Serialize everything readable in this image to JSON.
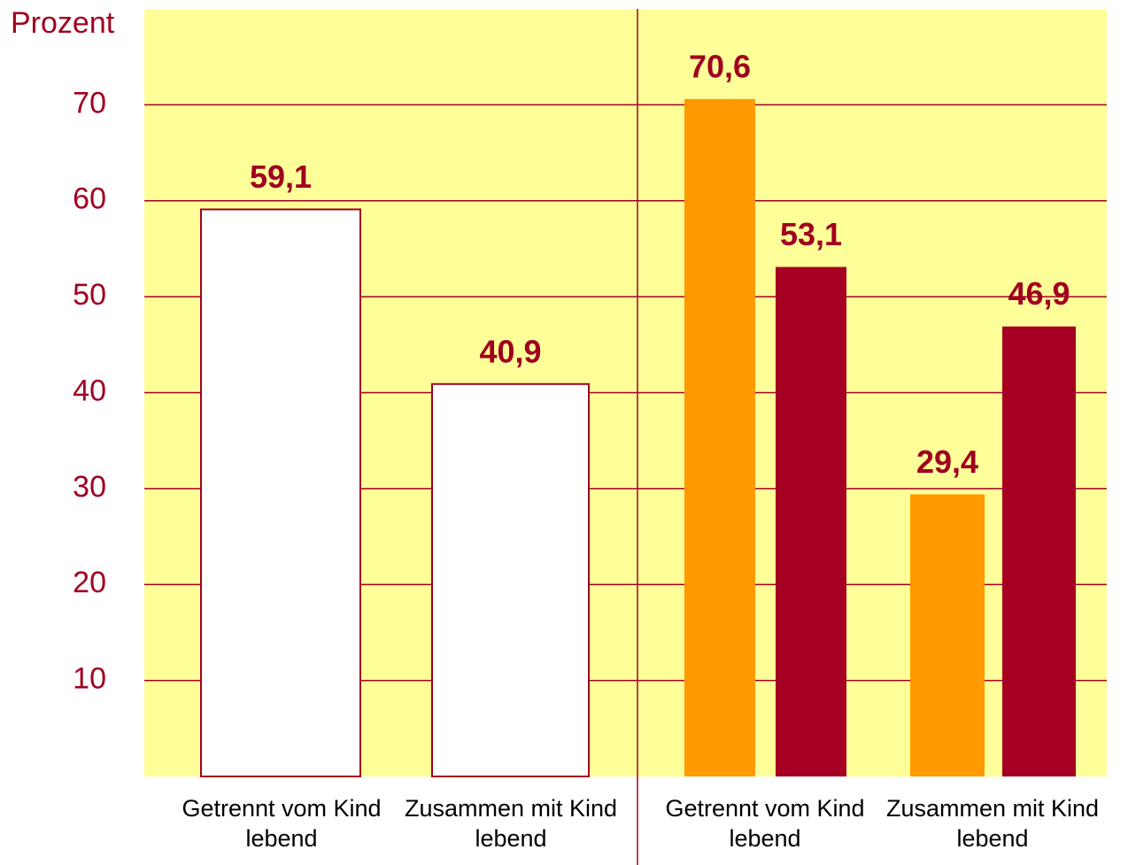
{
  "chart_data": {
    "type": "bar",
    "ylabel": "Prozent",
    "categories": [
      "Getrennt vom Kind lebend",
      "Zusammen mit Kind lebend",
      "Getrennt vom Kind lebend",
      "Zusammen mit Kind lebend"
    ],
    "series": [
      {
        "color": "#ffffff",
        "values": [
          59.1,
          40.9,
          null,
          null
        ],
        "value_labels": [
          "59,1",
          "40,9",
          null,
          null
        ]
      },
      {
        "color": "#ff9900",
        "values": [
          null,
          null,
          70.6,
          29.4
        ],
        "value_labels": [
          null,
          null,
          "70,6",
          "29,4"
        ]
      },
      {
        "color": "#a50021",
        "values": [
          null,
          null,
          53.1,
          46.9
        ],
        "value_labels": [
          null,
          null,
          "53,1",
          "46,9"
        ]
      }
    ],
    "ylim": [
      0,
      80
    ],
    "yticks": [
      10,
      20,
      30,
      40,
      50,
      60,
      70
    ],
    "grid": true
  }
}
